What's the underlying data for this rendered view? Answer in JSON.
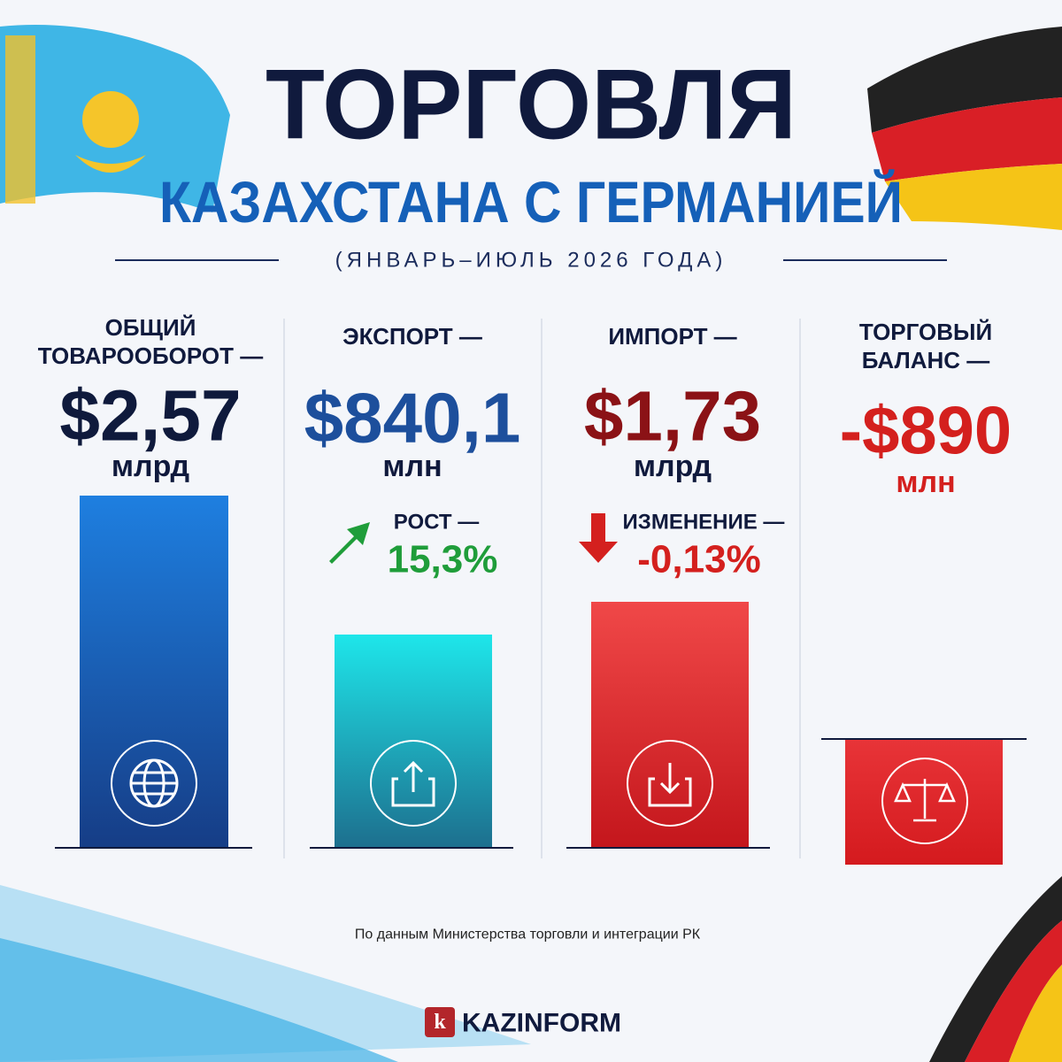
{
  "header": {
    "title": "ТОРГОВЛЯ",
    "subtitle": "КАЗАХСТАНА С ГЕРМАНИЕЙ",
    "period": "(ЯНВАРЬ–ИЮЛЬ 2026 ГОДА)"
  },
  "cards": [
    {
      "label_lines": [
        "ОБЩИЙ",
        "ТОВАРООБОРОТ —"
      ],
      "value": "$2,57",
      "unit": "млрд"
    },
    {
      "label_lines": [
        "ЭКСПОРТ —"
      ],
      "value": "$840,1",
      "unit": "млн",
      "change_label": "РОСТ —",
      "change": "15,3%"
    },
    {
      "label_lines": [
        "ИМПОРТ —"
      ],
      "value": "$1,73",
      "unit": "млрд",
      "change_label": "ИЗМЕНЕНИЕ —",
      "change": "-0,13%"
    },
    {
      "label_lines": [
        "ТОРГОВЫЙ",
        "БАЛАНС —"
      ],
      "value": "-$890",
      "unit": "млн"
    }
  ],
  "footer": {
    "source": "По данным Министерства торговли и интеграции РК",
    "logo_letter": "k",
    "brand": "KAZINFORM"
  }
}
